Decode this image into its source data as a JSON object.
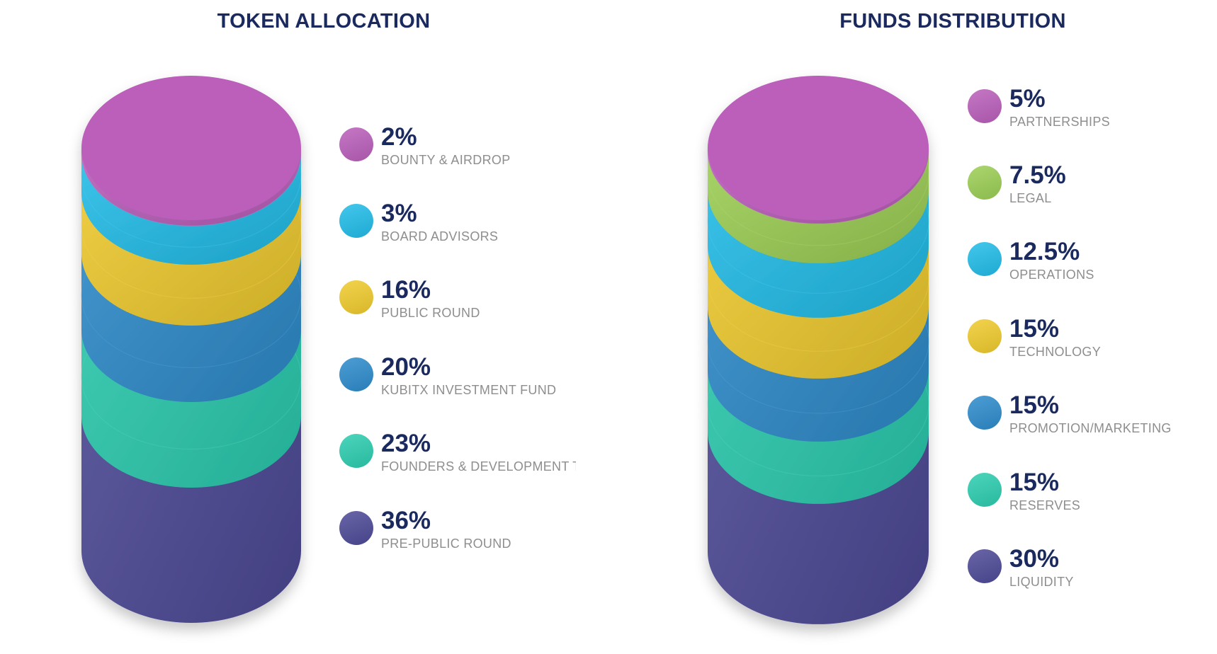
{
  "chart_data": [
    {
      "type": "stacked-cylinder",
      "title": "TOKEN ALLOCATION",
      "items": [
        {
          "value": "2%",
          "label": "BOUNTY & AIRDROP",
          "color": "#bb5fbb"
        },
        {
          "value": "3%",
          "label": "BOARD ADVISORS",
          "color": "#22bde9"
        },
        {
          "value": "16%",
          "label": "PUBLIC ROUND",
          "color": "#f0cb2e"
        },
        {
          "value": "20%",
          "label": "KUBITX INVESTMENT FUND",
          "color": "#2e8ccc"
        },
        {
          "value": "23%",
          "label": "FOUNDERS & DEVELOPMENT TI",
          "color": "#2ccdb0"
        },
        {
          "value": "36%",
          "label": "PRE-PUBLIC ROUND",
          "color": "#4e4a98"
        }
      ]
    },
    {
      "type": "stacked-cylinder",
      "title": "FUNDS DISTRIBUTION",
      "items": [
        {
          "value": "5%",
          "label": "PARTNERSHIPS",
          "color": "#bb5fbb"
        },
        {
          "value": "7.5%",
          "label": "LEGAL",
          "color": "#9ccf55"
        },
        {
          "value": "12.5%",
          "label": "OPERATIONS",
          "color": "#22bde9"
        },
        {
          "value": "15%",
          "label": "TECHNOLOGY",
          "color": "#f0cb2e"
        },
        {
          "value": "15%",
          "label": "PROMOTION/MARKETING",
          "color": "#2e8ccc"
        },
        {
          "value": "15%",
          "label": "RESERVES",
          "color": "#2ccdb0"
        },
        {
          "value": "30%",
          "label": "LIQUIDITY",
          "color": "#4e4a98"
        }
      ]
    }
  ]
}
